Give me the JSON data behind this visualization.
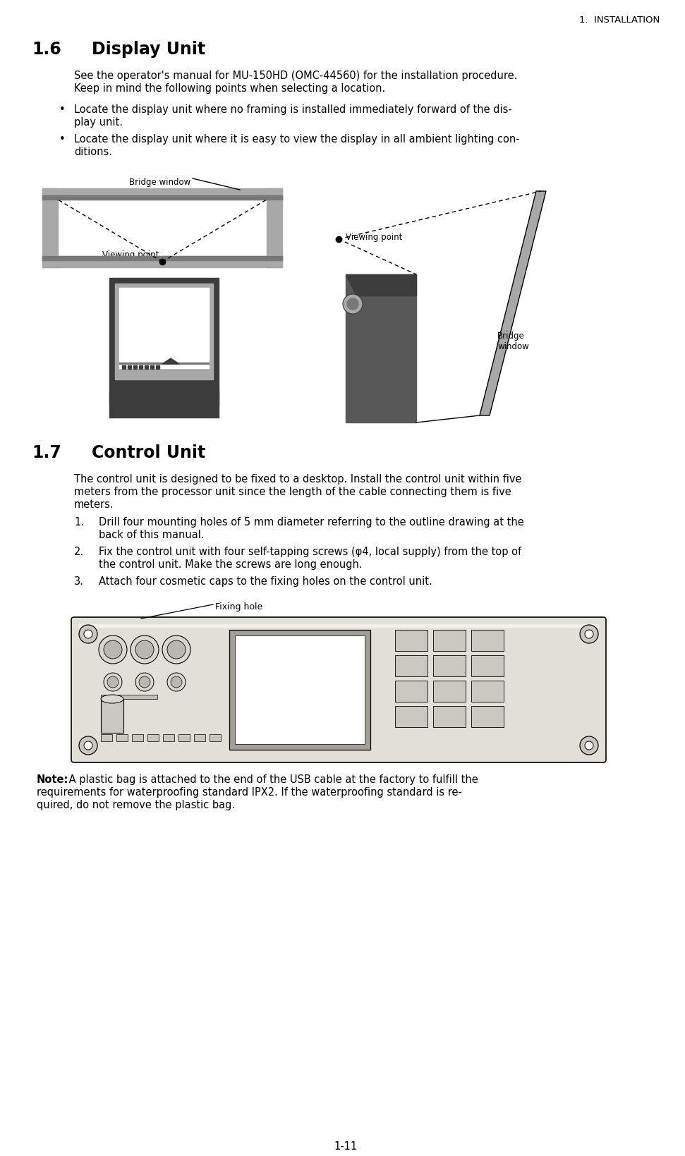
{
  "page_header": "1.  INSTALLATION",
  "section_16_num": "1.6",
  "section_16_title": "Display Unit",
  "para16_1": "See the operator's manual for MU-150HD (OMC-44560) for the installation procedure.",
  "para16_2": "Keep in mind the following points when selecting a location.",
  "bullet1_line1": "Locate the display unit where no framing is installed immediately forward of the dis-",
  "bullet1_line2": "play unit.",
  "bullet2_line1": "Locate the display unit where it is easy to view the display in all ambient lighting con-",
  "bullet2_line2": "ditions.",
  "label_bridge_window1": "Bridge window",
  "label_viewing_point1": "Viewing point",
  "label_viewing_point2": "Viewing point",
  "label_bridge_window2": "Bridge\nwindow",
  "section_17_num": "1.7",
  "section_17_title": "Control Unit",
  "para17_1": "The control unit is designed to be fixed to a desktop. Install the control unit within five",
  "para17_2": "meters from the processor unit since the length of the cable connecting them is five",
  "para17_3": "meters.",
  "item1_a": "Drill four mounting holes of 5 mm diameter referring to the outline drawing at the",
  "item1_b": "back of this manual.",
  "item2_a": "Fix the control unit with four self-tapping screws (φ4, local supply) from the top of",
  "item2_b": "the control unit. Make the screws are long enough.",
  "item3": "Attach four cosmetic caps to the fixing holes on the control unit.",
  "label_fixing_hole": "Fixing hole",
  "note_bold": "Note:",
  "note_1": " A plastic bag is attached to the end of the USB cable at the factory to fulfill the",
  "note_2": "requirements for waterproofing standard IPX2. If the waterproofing standard is re-",
  "note_3": "quired, do not remove the plastic bag.",
  "page_num": "1-11",
  "bg_color": "#ffffff",
  "gray_dark": "#3c3c3c",
  "gray_mid": "#787878",
  "gray_light": "#a8a8a8",
  "gray_lighter": "#d0d0d0",
  "gray_frame": "#909090",
  "gray_body": "#585858"
}
